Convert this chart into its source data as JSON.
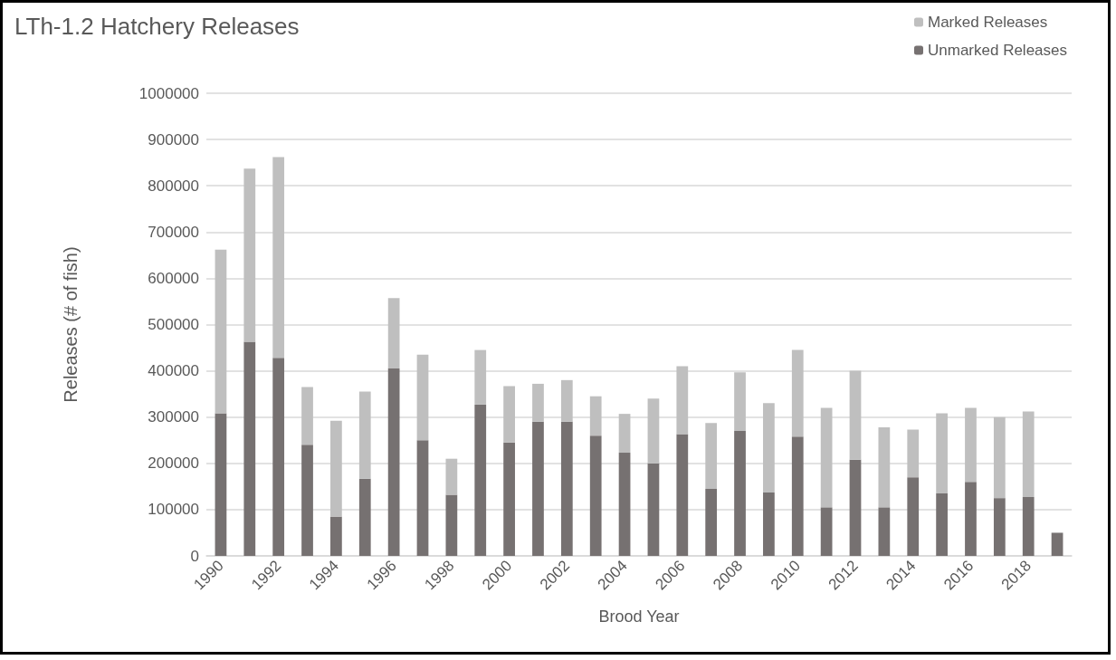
{
  "chart_data": {
    "type": "bar",
    "title": "LTh-1.2 Hatchery Releases",
    "xlabel": "Brood Year",
    "ylabel": "Releases (# of fish)",
    "categories": [
      "1990",
      null,
      "1992",
      null,
      "1994",
      null,
      "1996",
      null,
      "1998",
      null,
      "2000",
      null,
      "2002",
      null,
      "2004",
      null,
      "2006",
      null,
      "2008",
      null,
      "2010",
      null,
      "2012",
      null,
      "2014",
      null,
      "2016",
      null,
      "2018",
      null
    ],
    "series": [
      {
        "name": "Unmarked Releases",
        "color": "#767171",
        "values": [
          308000,
          463000,
          428000,
          240000,
          85000,
          167000,
          405000,
          250000,
          132000,
          327000,
          245000,
          290000,
          290000,
          260000,
          223000,
          200000,
          263000,
          145000,
          270000,
          137000,
          258000,
          105000,
          208000,
          105000,
          170000,
          135000,
          160000,
          125000,
          127000,
          50000
        ]
      },
      {
        "name": "Marked Releases",
        "color": "#bfbfbf",
        "values": [
          354000,
          374000,
          434000,
          125000,
          207000,
          188000,
          152000,
          185000,
          78000,
          118000,
          122000,
          82000,
          90000,
          85000,
          84000,
          140000,
          147000,
          142000,
          127000,
          193000,
          187000,
          215000,
          192000,
          173000,
          103000,
          173000,
          160000,
          175000,
          185000,
          null
        ]
      }
    ],
    "stacked": true,
    "ylim": [
      0,
      1000000
    ],
    "yticks": [
      0,
      100000,
      200000,
      300000,
      400000,
      500000,
      600000,
      700000,
      800000,
      900000,
      1000000
    ],
    "grid": "y",
    "legend": "top right"
  }
}
